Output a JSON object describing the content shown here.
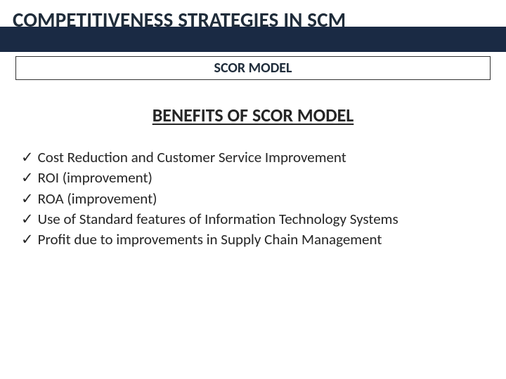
{
  "colors": {
    "band_bg": "#1a2a44",
    "page_bg": "#ffffff",
    "title_color": "#1f2c3a",
    "subtitle_color": "#1f2c3a",
    "heading_color": "#252525",
    "body_color": "#252525",
    "box_border": "#333333"
  },
  "typography": {
    "title_fontsize": 29,
    "title_weight": 700,
    "subtitle_fontsize": 20,
    "subtitle_weight": 700,
    "heading_fontsize": 26,
    "heading_weight": 700,
    "body_fontsize": 21,
    "font_family": "Calibri"
  },
  "title": "COMPETITIVENESS STRATEGIES IN SCM",
  "subtitle": "SCOR MODEL",
  "section_heading": "BENEFITS OF SCOR MODEL",
  "bullet_glyph": "✓",
  "benefits": [
    "Cost Reduction and Customer Service Improvement",
    "ROI (improvement)",
    "ROA (improvement)",
    "Use of Standard features of Information Technology Systems",
    "Profit due to improvements in Supply Chain Management"
  ]
}
